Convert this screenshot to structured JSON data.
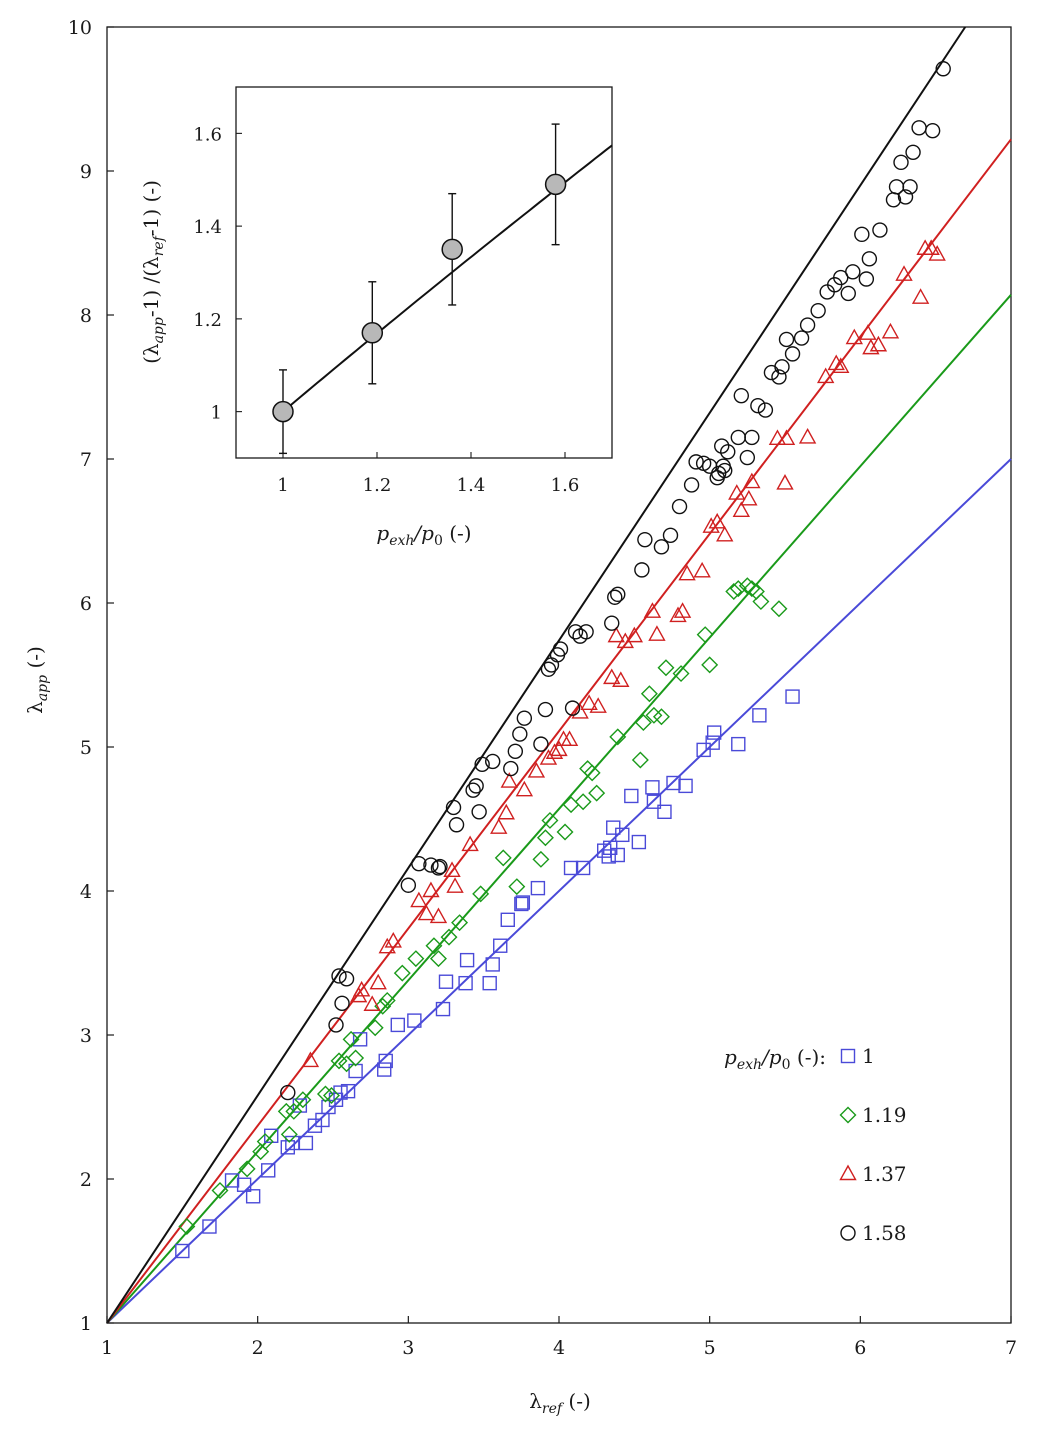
{
  "chart_data": {
    "type": "scatter",
    "xlabel": "λ",
    "xlabel_sub": "ref",
    "xlabel_suffix": " (-)",
    "ylabel": "λ",
    "ylabel_sub": "app",
    "ylabel_suffix": " (-)",
    "xlim": [
      1,
      7
    ],
    "ylim": [
      1,
      10
    ],
    "x_ticks": [
      "1",
      "2",
      "3",
      "4",
      "5",
      "6",
      "7"
    ],
    "y_ticks": [
      "1",
      "2",
      "3",
      "4",
      "5",
      "6",
      "7",
      "8",
      "9",
      "10"
    ],
    "grid": false,
    "legend": {
      "placement": "bottom-right",
      "title": "p",
      "title_sub": "exh",
      "title_mid": "/p",
      "title_sub2": "0",
      "title_suffix": " (-):"
    },
    "series": [
      {
        "name": "1",
        "marker": "square",
        "color": "#4a4ad8",
        "slope": 1.0,
        "x": [
          1.5,
          1.68,
          1.83,
          1.91,
          1.97,
          2.07,
          2.09,
          2.2,
          2.23,
          2.28,
          2.32,
          2.38,
          2.43,
          2.47,
          2.52,
          2.55,
          2.6,
          2.65,
          2.68,
          2.84,
          2.85,
          2.93,
          3.04,
          3.23,
          3.25,
          3.38,
          3.39,
          3.54,
          3.56,
          3.61,
          3.66,
          3.75,
          3.76,
          3.86,
          4.08,
          4.16,
          4.3,
          4.33,
          4.34,
          4.36,
          4.39,
          4.42,
          4.48,
          4.53,
          4.62,
          4.63,
          4.7,
          4.76,
          4.84,
          4.96,
          5.02,
          5.03,
          5.19,
          5.33,
          5.55
        ],
        "y": [
          1.5,
          1.67,
          1.99,
          1.96,
          1.88,
          2.06,
          2.3,
          2.22,
          2.25,
          2.51,
          2.25,
          2.37,
          2.41,
          2.5,
          2.55,
          2.6,
          2.61,
          2.75,
          2.97,
          2.76,
          2.82,
          3.07,
          3.1,
          3.18,
          3.37,
          3.36,
          3.52,
          3.36,
          3.49,
          3.62,
          3.8,
          3.91,
          3.92,
          4.02,
          4.16,
          4.16,
          4.28,
          4.24,
          4.3,
          4.44,
          4.25,
          4.39,
          4.66,
          4.34,
          4.72,
          4.62,
          4.55,
          4.75,
          4.73,
          4.98,
          5.03,
          5.1,
          5.02,
          5.22,
          5.35
        ]
      },
      {
        "name": "1.19",
        "marker": "diamond",
        "color": "#1a9a1a",
        "slope": 1.19,
        "x": [
          1.53,
          1.75,
          1.93,
          2.02,
          2.05,
          2.19,
          2.21,
          2.24,
          2.3,
          2.45,
          2.49,
          2.54,
          2.59,
          2.62,
          2.65,
          2.78,
          2.83,
          2.86,
          2.96,
          3.05,
          3.17,
          3.2,
          3.27,
          3.34,
          3.48,
          3.63,
          3.72,
          3.88,
          3.91,
          3.94,
          4.04,
          4.08,
          4.16,
          4.19,
          4.22,
          4.25,
          4.39,
          4.54,
          4.56,
          4.6,
          4.63,
          4.68,
          4.71,
          4.81,
          4.97,
          5.0,
          5.16,
          5.19,
          5.25,
          5.28,
          5.31,
          5.34,
          5.46
        ],
        "y": [
          1.67,
          1.92,
          2.07,
          2.19,
          2.26,
          2.47,
          2.31,
          2.47,
          2.55,
          2.59,
          2.58,
          2.82,
          2.8,
          2.97,
          2.84,
          3.05,
          3.2,
          3.24,
          3.43,
          3.53,
          3.62,
          3.53,
          3.68,
          3.78,
          3.98,
          4.23,
          4.03,
          4.22,
          4.37,
          4.49,
          4.41,
          4.6,
          4.62,
          4.85,
          4.82,
          4.68,
          5.07,
          4.91,
          5.17,
          5.37,
          5.22,
          5.21,
          5.55,
          5.51,
          5.78,
          5.57,
          6.08,
          6.1,
          6.12,
          6.1,
          6.08,
          6.01,
          5.96
        ]
      },
      {
        "name": "1.37",
        "marker": "triangle",
        "color": "#d02020",
        "slope": 1.37,
        "x": [
          2.35,
          2.67,
          2.69,
          2.76,
          2.8,
          2.86,
          2.9,
          3.07,
          3.12,
          3.15,
          3.2,
          3.29,
          3.31,
          3.41,
          3.6,
          3.65,
          3.67,
          3.77,
          3.85,
          3.93,
          3.97,
          4.0,
          4.03,
          4.07,
          4.14,
          4.2,
          4.26,
          4.35,
          4.38,
          4.41,
          4.44,
          4.5,
          4.62,
          4.65,
          4.79,
          4.82,
          4.85,
          4.95,
          5.01,
          5.05,
          5.1,
          5.18,
          5.21,
          5.26,
          5.28,
          5.45,
          5.5,
          5.51,
          5.65,
          5.77,
          5.84,
          5.87,
          5.96,
          6.05,
          6.07,
          6.12,
          6.2,
          6.29,
          6.4,
          6.43,
          6.47,
          6.51
        ],
        "y": [
          2.82,
          3.27,
          3.31,
          3.21,
          3.36,
          3.61,
          3.65,
          3.93,
          3.84,
          4.0,
          3.82,
          4.14,
          4.03,
          4.32,
          4.44,
          4.54,
          4.76,
          4.7,
          4.83,
          4.92,
          4.96,
          4.98,
          5.05,
          5.05,
          5.24,
          5.3,
          5.28,
          5.48,
          5.77,
          5.46,
          5.73,
          5.77,
          5.94,
          5.78,
          5.91,
          5.94,
          6.2,
          6.22,
          6.53,
          6.56,
          6.47,
          6.76,
          6.64,
          6.72,
          6.84,
          7.14,
          6.83,
          7.14,
          7.15,
          7.57,
          7.66,
          7.64,
          7.84,
          7.87,
          7.77,
          7.79,
          7.88,
          8.28,
          8.12,
          8.46,
          8.46,
          8.42
        ]
      },
      {
        "name": "1.58",
        "marker": "circle",
        "color": "#111111",
        "slope": 1.58,
        "x": [
          2.2,
          2.52,
          2.54,
          2.56,
          2.59,
          3.0,
          3.07,
          3.15,
          3.2,
          3.21,
          3.3,
          3.32,
          3.43,
          3.45,
          3.47,
          3.49,
          3.56,
          3.68,
          3.71,
          3.74,
          3.77,
          3.88,
          3.91,
          3.93,
          3.95,
          3.99,
          4.01,
          4.09,
          4.11,
          4.14,
          4.18,
          4.35,
          4.37,
          4.39,
          4.55,
          4.57,
          4.68,
          4.74,
          4.8,
          4.88,
          4.91,
          4.96,
          5.0,
          5.05,
          5.06,
          5.08,
          5.09,
          5.1,
          5.12,
          5.19,
          5.21,
          5.25,
          5.28,
          5.32,
          5.37,
          5.41,
          5.46,
          5.48,
          5.51,
          5.55,
          5.61,
          5.65,
          5.72,
          5.78,
          5.83,
          5.87,
          5.92,
          5.95,
          6.01,
          6.04,
          6.06,
          6.13,
          6.22,
          6.24,
          6.27,
          6.3,
          6.33,
          6.35,
          6.39,
          6.48,
          6.55
        ],
        "y": [
          2.6,
          3.07,
          3.41,
          3.22,
          3.39,
          4.04,
          4.19,
          4.18,
          4.16,
          4.17,
          4.58,
          4.46,
          4.7,
          4.73,
          4.55,
          4.88,
          4.9,
          4.85,
          4.97,
          5.09,
          5.2,
          5.02,
          5.26,
          5.54,
          5.57,
          5.64,
          5.68,
          5.27,
          5.8,
          5.77,
          5.8,
          5.86,
          6.04,
          6.06,
          6.23,
          6.44,
          6.39,
          6.47,
          6.67,
          6.82,
          6.98,
          6.97,
          6.95,
          6.87,
          6.9,
          7.09,
          6.95,
          6.92,
          7.05,
          7.15,
          7.44,
          7.01,
          7.15,
          7.37,
          7.34,
          7.6,
          7.57,
          7.64,
          7.83,
          7.73,
          7.84,
          7.93,
          8.03,
          8.16,
          8.21,
          8.26,
          8.15,
          8.3,
          8.56,
          8.25,
          8.39,
          8.59,
          8.8,
          8.89,
          9.06,
          8.82,
          8.89,
          9.13,
          9.3,
          9.28,
          9.71
        ]
      }
    ],
    "inset": {
      "type": "scatter",
      "xlabel": "p",
      "xlabel_sub": "exh",
      "xlabel_mid": "/p",
      "xlabel_sub2": "0",
      "xlabel_suffix": " (-)",
      "ylabel": "(λ",
      "ylabel_sub": "app",
      "ylabel_mid": "-1) /(λ",
      "ylabel_sub2": "ref",
      "ylabel_suffix": "-1) (-)",
      "xlim": [
        0.9,
        1.7
      ],
      "ylim": [
        0.9,
        1.7
      ],
      "x_ticks": [
        "1",
        "1.2",
        "1.4",
        "1.6"
      ],
      "y_ticks": [
        "1",
        "1.2",
        "1.4",
        "1.6"
      ],
      "x": [
        1.0,
        1.19,
        1.36,
        1.58
      ],
      "y": [
        1.0,
        1.17,
        1.35,
        1.49
      ],
      "error": [
        0.09,
        0.11,
        0.12,
        0.13
      ],
      "fit_exponent": 0.855
    }
  }
}
